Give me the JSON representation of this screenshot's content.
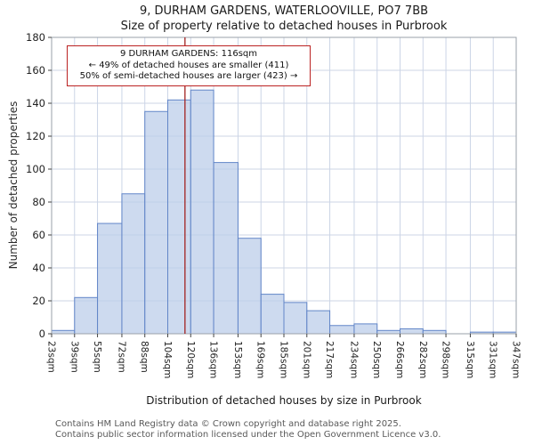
{
  "chart_data": {
    "type": "bar",
    "title": "9, DURHAM GARDENS, WATERLOOVILLE, PO7 7BB",
    "subtitle": "Size of property relative to detached houses in Purbrook",
    "xlabel": "Distribution of detached houses by size in Purbrook",
    "ylabel": "Number of detached properties",
    "bin_edges_sqm": [
      23,
      39,
      55,
      72,
      88,
      104,
      120,
      136,
      153,
      169,
      185,
      201,
      217,
      234,
      250,
      266,
      282,
      298,
      315,
      331,
      347
    ],
    "x_tick_labels": [
      "23sqm",
      "39sqm",
      "55sqm",
      "72sqm",
      "88sqm",
      "104sqm",
      "120sqm",
      "136sqm",
      "153sqm",
      "169sqm",
      "185sqm",
      "201sqm",
      "217sqm",
      "234sqm",
      "250sqm",
      "266sqm",
      "282sqm",
      "298sqm",
      "315sqm",
      "331sqm",
      "347sqm"
    ],
    "values": [
      2,
      22,
      67,
      85,
      135,
      142,
      148,
      104,
      58,
      24,
      19,
      14,
      5,
      6,
      2,
      3,
      2,
      0,
      1,
      1
    ],
    "y_ticks": [
      0,
      20,
      40,
      60,
      80,
      100,
      120,
      140,
      160,
      180
    ],
    "ylim": [
      0,
      180
    ],
    "grid": true,
    "legend": false,
    "marker": {
      "value_sqm": 116,
      "color": "#a22322"
    },
    "annotation": {
      "line1": "9 DURHAM GARDENS: 116sqm",
      "line2": "← 49% of detached houses are smaller (411)",
      "line3": "50% of semi-detached houses are larger (423) →"
    },
    "colors": {
      "bar_fill": "#bccdea",
      "bar_stroke": "#6286c8",
      "grid": "#ccd5e6",
      "axis_box": "#9aa0a8",
      "tick": "#444444",
      "annotation_border": "#bb2222"
    }
  },
  "footer": {
    "line1": "Contains HM Land Registry data © Crown copyright and database right 2025.",
    "line2": "Contains public sector information licensed under the Open Government Licence v3.0."
  }
}
